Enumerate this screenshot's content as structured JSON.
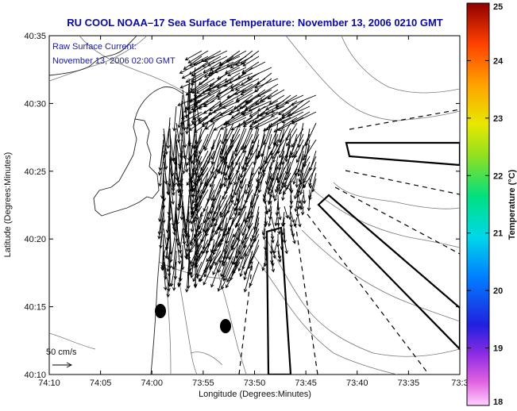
{
  "chart_data": {
    "type": "map",
    "title": "RU COOL  NOAA–17  Sea Surface Temperature:  November 13, 2006 0210 GMT",
    "annotation_line1": "Raw Surface Current:",
    "annotation_line2": "November 13, 2006 02:00 GMT",
    "xlabel": "Longitude (Degrees:Minutes)",
    "ylabel": "Latitude (Degrees:Minutes)",
    "x_ticks": [
      "74:10",
      "74:05",
      "74:00",
      "73:55",
      "73:50",
      "73:45",
      "73:40",
      "73:35",
      "73:3"
    ],
    "y_ticks": [
      "40:10",
      "40:15",
      "40:20",
      "40:25",
      "40:30",
      "40:35"
    ],
    "xlim": [
      -74.1667,
      -73.5
    ],
    "ylim": [
      40.1667,
      40.5833
    ],
    "scale_label": "50 cm/s",
    "colorbar": {
      "label": "Temperature (°C)",
      "ticks": [
        "18",
        "19",
        "20",
        "21",
        "22",
        "23",
        "24",
        "25"
      ],
      "range": [
        18,
        25
      ]
    }
  }
}
